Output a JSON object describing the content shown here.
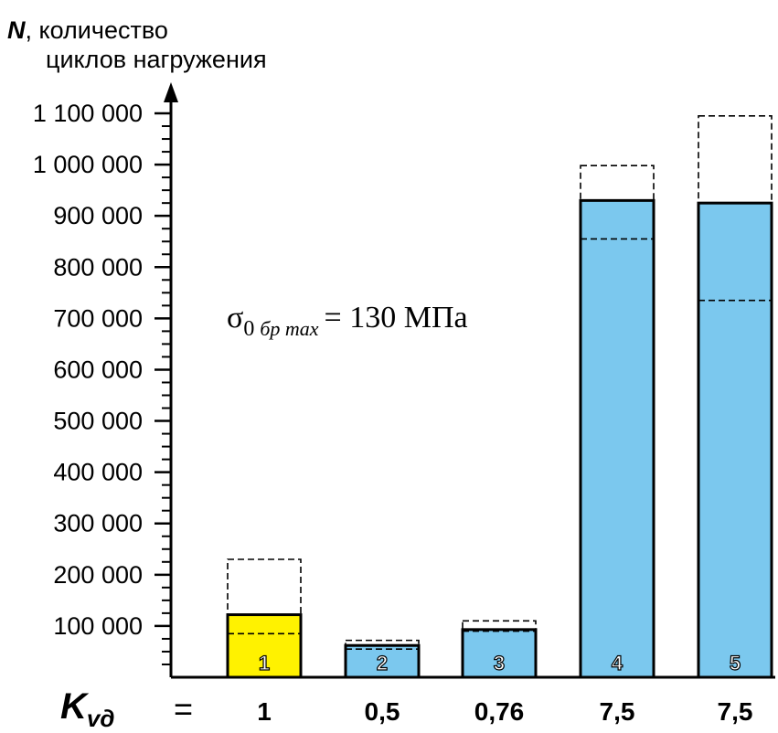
{
  "chart_data": {
    "type": "bar",
    "y_axis": {
      "title_symbol": "N",
      "title_rest": ", количество",
      "title_line2": "циклов нагружения",
      "ylim": [
        0,
        1100000
      ],
      "major_ticks": [
        100000,
        200000,
        300000,
        400000,
        500000,
        600000,
        700000,
        800000,
        900000,
        1000000,
        1100000
      ],
      "tick_labels": [
        "100 000",
        "200 000",
        "300 000",
        "400 000",
        "500 000",
        "600 000",
        "700 000",
        "800 000",
        "900 000",
        "1 000 000",
        "1 100 000"
      ],
      "minor_step": 25000
    },
    "x_axis": {
      "label_symbol": "K",
      "label_subscript": "vд",
      "equals": "="
    },
    "annotation": {
      "symbol": "σ",
      "subscript_main": "0",
      "subscript_italic": "бр max",
      "text": "= 130 МПа"
    },
    "bars": [
      {
        "label": "1",
        "k_value": "1",
        "value": 122000,
        "dashed_low": 85000,
        "dashed_high": 230000,
        "color": "#FFF200"
      },
      {
        "label": "2",
        "k_value": "0,5",
        "value": 62000,
        "dashed_low": 55000,
        "dashed_high": 72000,
        "color": "#7BC8EE"
      },
      {
        "label": "3",
        "k_value": "0,76",
        "value": 93000,
        "dashed_low": 90000,
        "dashed_high": 110000,
        "color": "#7BC8EE"
      },
      {
        "label": "4",
        "k_value": "7,5",
        "value": 930000,
        "dashed_low": 855000,
        "dashed_high": 998000,
        "color": "#7BC8EE"
      },
      {
        "label": "5",
        "k_value": "7,5",
        "value": 925000,
        "dashed_low": 735000,
        "dashed_high": 1095000,
        "color": "#7BC8EE"
      }
    ]
  }
}
